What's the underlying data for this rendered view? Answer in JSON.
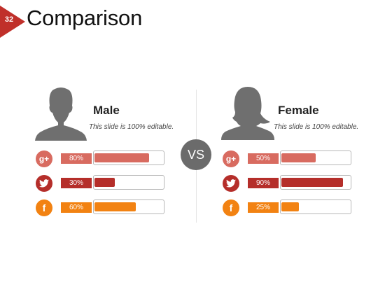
{
  "slide": {
    "number": "32",
    "title": "Comparison",
    "vs_label": "VS"
  },
  "colors": {
    "gplus": "#d86b60",
    "twitter": "#b52e2a",
    "facebook": "#f28212",
    "badge": "#c0302a",
    "avatar": "#6f6f6f"
  },
  "male": {
    "name": "Male",
    "subtitle": "This slide is 100% editable.",
    "rows": [
      {
        "icon": "google-plus-icon",
        "label": "80%",
        "value": 80
      },
      {
        "icon": "twitter-icon",
        "label": "30%",
        "value": 30
      },
      {
        "icon": "facebook-icon",
        "label": "60%",
        "value": 60
      }
    ]
  },
  "female": {
    "name": "Female",
    "subtitle": "This slide is 100% editable.",
    "rows": [
      {
        "icon": "google-plus-icon",
        "label": "50%",
        "value": 50
      },
      {
        "icon": "twitter-icon",
        "label": "90%",
        "value": 90
      },
      {
        "icon": "facebook-icon",
        "label": "25%",
        "value": 25
      }
    ]
  }
}
